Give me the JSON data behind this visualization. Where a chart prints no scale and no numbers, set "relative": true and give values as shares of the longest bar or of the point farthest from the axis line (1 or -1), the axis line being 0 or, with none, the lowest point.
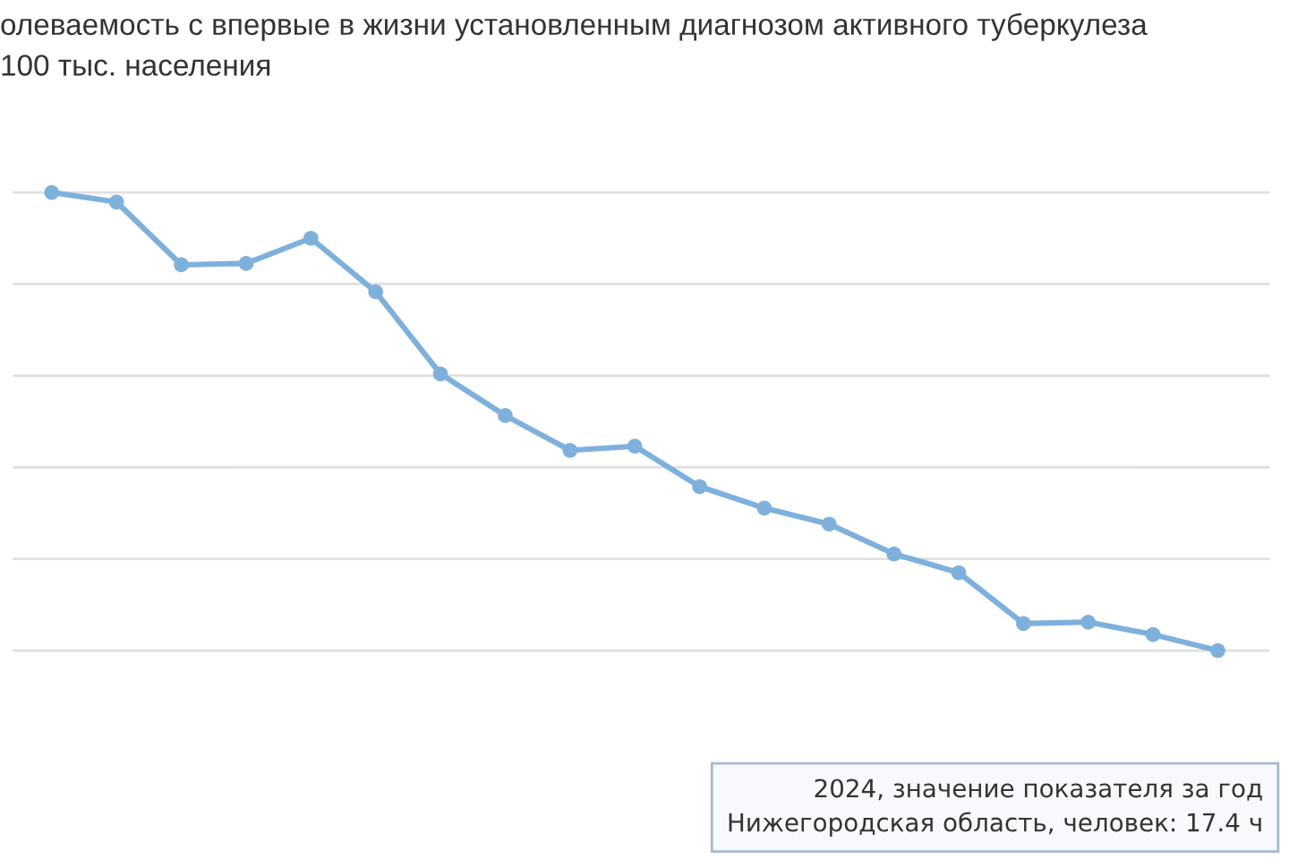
{
  "chart_data": {
    "type": "line",
    "title": "олеваемость с впервые в жизни установленным диагнозом активного туберкулеза\n100 тыс. населения",
    "relative": true,
    "categories": [
      null,
      null,
      null,
      null,
      null,
      null,
      null,
      null,
      null,
      null,
      null,
      null,
      null,
      null,
      null,
      null,
      null,
      null,
      null
    ],
    "series": [
      {
        "color": "#7eb0dc",
        "values": [
          1.0,
          0.979,
          0.842,
          0.845,
          0.9,
          0.783,
          0.604,
          0.513,
          0.437,
          0.446,
          0.358,
          0.311,
          0.276,
          0.211,
          0.17,
          0.059,
          0.062,
          0.035,
          0.0
        ]
      }
    ],
    "marker": "circle",
    "line_style": "solid",
    "grid": "y",
    "annotations": [
      "2024, значение показателя за год",
      "Нижегородская область, человек: 17.4 ч"
    ]
  }
}
